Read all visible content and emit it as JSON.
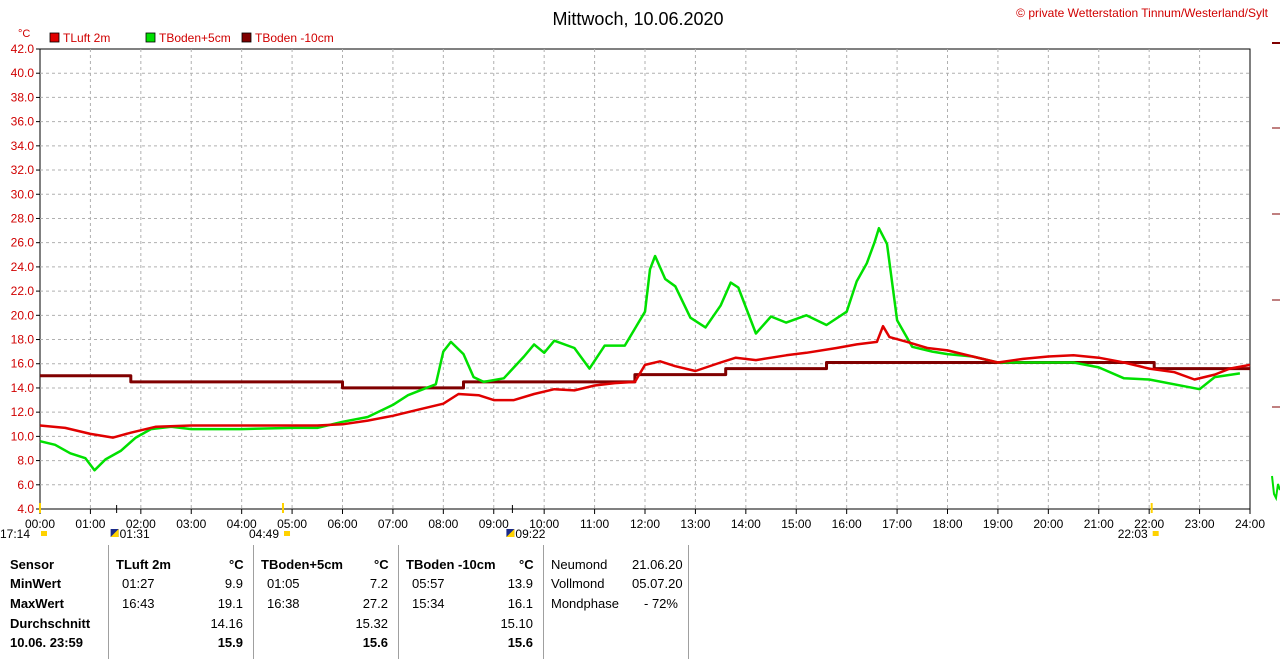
{
  "chart_data": {
    "type": "line",
    "title": "Mittwoch, 10.06.2020",
    "copyright": "© private Wetterstation Tinnum/Westerland/Sylt",
    "ylabel": "°C",
    "ylim": [
      4.0,
      42.0
    ],
    "y_ticks": [
      "4.0",
      "6.0",
      "8.0",
      "10.0",
      "12.0",
      "14.0",
      "16.0",
      "18.0",
      "20.0",
      "22.0",
      "24.0",
      "26.0",
      "28.0",
      "30.0",
      "32.0",
      "34.0",
      "36.0",
      "38.0",
      "40.0",
      "42.0"
    ],
    "x_ticks": [
      "00:00",
      "01:00",
      "02:00",
      "03:00",
      "04:00",
      "05:00",
      "06:00",
      "07:00",
      "08:00",
      "09:00",
      "10:00",
      "11:00",
      "12:00",
      "13:00",
      "14:00",
      "15:00",
      "16:00",
      "17:00",
      "18:00",
      "19:00",
      "20:00",
      "21:00",
      "22:00",
      "23:00",
      "24:00"
    ],
    "grid": true,
    "legend_position": "top-left",
    "astro_markers": [
      {
        "label": "17:14",
        "hour": 0.0,
        "kind": "sun"
      },
      {
        "label": "01:31",
        "hour": 1.52,
        "kind": "moon"
      },
      {
        "label": "04:49",
        "hour": 4.82,
        "kind": "sun"
      },
      {
        "label": "09:22",
        "hour": 9.37,
        "kind": "moon"
      },
      {
        "label": "22:03",
        "hour": 22.05,
        "kind": "sun"
      }
    ],
    "series": [
      {
        "name": "TLuft 2m",
        "color": "#e00000",
        "x": [
          0,
          0.5,
          1.0,
          1.45,
          1.8,
          2.3,
          3,
          4,
          5,
          5.5,
          6,
          6.5,
          7,
          7.5,
          8,
          8.3,
          8.7,
          9,
          9.4,
          9.8,
          10.2,
          10.6,
          11,
          11.4,
          11.8,
          12,
          12.3,
          12.6,
          13,
          13.5,
          13.8,
          14.2,
          14.8,
          15.2,
          15.8,
          16.2,
          16.6,
          16.72,
          16.85,
          17.2,
          17.6,
          18,
          18.5,
          19,
          19.5,
          20,
          20.5,
          21,
          21.5,
          22,
          22.5,
          22.9,
          23.3,
          23.6,
          24
        ],
        "y": [
          10.9,
          10.7,
          10.2,
          9.9,
          10.3,
          10.8,
          10.9,
          10.9,
          10.9,
          10.9,
          11.0,
          11.3,
          11.7,
          12.2,
          12.7,
          13.5,
          13.4,
          13.0,
          13.0,
          13.5,
          13.9,
          13.8,
          14.2,
          14.4,
          14.5,
          15.9,
          16.2,
          15.8,
          15.4,
          16.1,
          16.5,
          16.3,
          16.7,
          16.9,
          17.3,
          17.6,
          17.8,
          19.1,
          18.2,
          17.8,
          17.3,
          17.1,
          16.6,
          16.1,
          16.4,
          16.6,
          16.7,
          16.5,
          16.1,
          15.6,
          15.3,
          14.7,
          15.1,
          15.6,
          15.9
        ]
      },
      {
        "name": "TBoden+5cm",
        "color": "#00e000",
        "x": [
          0,
          0.3,
          0.6,
          0.9,
          1.08,
          1.3,
          1.6,
          1.9,
          2.2,
          2.6,
          3,
          4,
          5,
          5.5,
          6,
          6.5,
          7,
          7.3,
          7.6,
          7.85,
          8.0,
          8.15,
          8.4,
          8.6,
          8.8,
          9.2,
          9.6,
          9.8,
          10.0,
          10.2,
          10.6,
          10.9,
          11.2,
          11.6,
          12.0,
          12.1,
          12.2,
          12.4,
          12.6,
          12.9,
          13.2,
          13.5,
          13.7,
          13.85,
          14.2,
          14.5,
          14.8,
          15.2,
          15.6,
          16.0,
          16.2,
          16.4,
          16.55,
          16.64,
          16.8,
          17.0,
          17.3,
          17.7,
          18,
          18.5,
          19,
          20,
          20.5,
          21,
          21.5,
          22,
          23,
          23.3,
          23.8
        ],
        "y": [
          9.6,
          9.3,
          8.6,
          8.2,
          7.2,
          8.1,
          8.8,
          9.9,
          10.6,
          10.8,
          10.6,
          10.6,
          10.7,
          10.7,
          11.2,
          11.6,
          12.6,
          13.4,
          13.9,
          14.3,
          17.0,
          17.8,
          16.8,
          14.9,
          14.5,
          14.8,
          16.6,
          17.6,
          16.9,
          17.9,
          17.3,
          15.6,
          17.5,
          17.5,
          20.3,
          23.8,
          24.9,
          23.0,
          22.4,
          19.8,
          19.0,
          20.8,
          22.7,
          22.3,
          18.5,
          19.9,
          19.4,
          20.0,
          19.2,
          20.3,
          22.8,
          24.3,
          26.0,
          27.2,
          25.9,
          19.6,
          17.4,
          17.0,
          16.8,
          16.6,
          16.1,
          16.1,
          16.1,
          15.7,
          14.8,
          14.7,
          13.9,
          14.9,
          15.2
        ]
      },
      {
        "name": "TBoden -10cm",
        "color": "#800000",
        "x": [
          0,
          1.8,
          1.8,
          6.0,
          6.0,
          8.4,
          8.4,
          11.8,
          11.8,
          13.6,
          13.6,
          15.6,
          15.6,
          21.0,
          21.0,
          22.1,
          22.1,
          23.0,
          23.0,
          24
        ],
        "y": [
          15.0,
          15.0,
          14.5,
          14.5,
          14.0,
          14.0,
          14.5,
          14.5,
          15.1,
          15.1,
          15.6,
          15.6,
          16.1,
          16.1,
          16.1,
          16.1,
          15.6,
          15.6,
          15.6,
          15.6
        ]
      }
    ]
  },
  "table": {
    "row_labels": [
      "Sensor",
      "MinWert",
      "MaxWert",
      "Durchschnitt",
      "10.06. 23:59"
    ],
    "sensors": [
      {
        "name": "TLuft 2m",
        "unit": "°C",
        "min_time": "01:27",
        "min_value": "9.9",
        "max_time": "16:43",
        "max_value": "19.1",
        "avg": "14.16",
        "current": "15.9"
      },
      {
        "name": "TBoden+5cm",
        "unit": "°C",
        "min_time": "01:05",
        "min_value": "7.2",
        "max_time": "16:38",
        "max_value": "27.2",
        "avg": "15.32",
        "current": "15.6"
      },
      {
        "name": "TBoden -10cm",
        "unit": "°C",
        "min_time": "05:57",
        "min_value": "13.9",
        "max_time": "15:34",
        "max_value": "16.1",
        "avg": "15.10",
        "current": "15.6"
      }
    ],
    "moon": [
      {
        "label": "Neumond",
        "value": "21.06.20"
      },
      {
        "label": "Vollmond",
        "value": "05.07.20"
      },
      {
        "label": "Mondphase",
        "value": "- 72%"
      }
    ]
  }
}
